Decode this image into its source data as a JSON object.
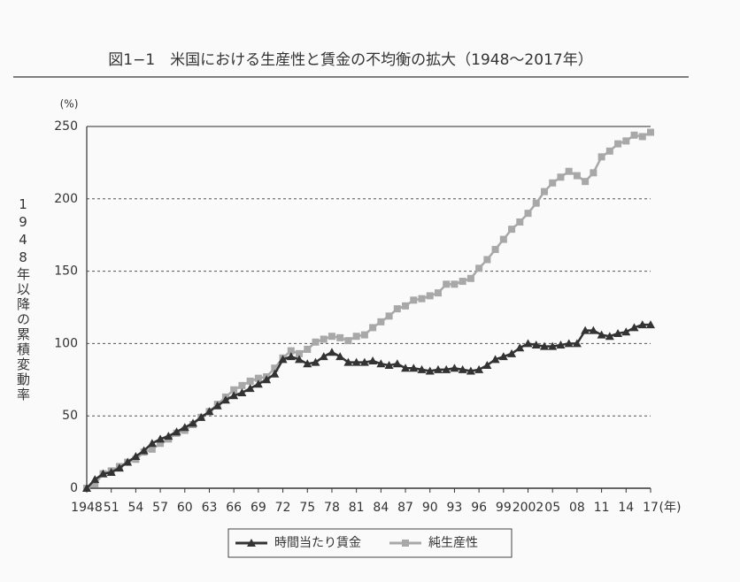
{
  "chart_data": {
    "type": "line",
    "title": "図1−1　米国における生産性と賃金の不均衡の拡大（1948〜2017年）",
    "y_unit": "(%)",
    "y_label": "1948年以降の累積変動率",
    "x_unit": "(年)",
    "x": [
      1948,
      1949,
      1950,
      1951,
      1952,
      1953,
      1954,
      1955,
      1956,
      1957,
      1958,
      1959,
      1960,
      1961,
      1962,
      1963,
      1964,
      1965,
      1966,
      1967,
      1968,
      1969,
      1970,
      1971,
      1972,
      1973,
      1974,
      1975,
      1976,
      1977,
      1978,
      1979,
      1980,
      1981,
      1982,
      1983,
      1984,
      1985,
      1986,
      1987,
      1988,
      1989,
      1990,
      1991,
      1992,
      1993,
      1994,
      1995,
      1996,
      1997,
      1998,
      1999,
      2000,
      2001,
      2002,
      2003,
      2004,
      2005,
      2006,
      2007,
      2008,
      2009,
      2010,
      2011,
      2012,
      2013,
      2014,
      2015,
      2016,
      2017
    ],
    "series": [
      {
        "name": "時間当たり賃金",
        "color": "#333333",
        "marker": "triangle",
        "values": [
          0,
          6,
          10,
          11,
          14,
          18,
          22,
          26,
          31,
          34,
          36,
          39,
          42,
          45,
          49,
          53,
          57,
          61,
          64,
          66,
          69,
          72,
          75,
          79,
          89,
          91,
          89,
          86,
          87,
          91,
          94,
          91,
          87,
          87,
          87,
          88,
          86,
          85,
          86,
          83,
          83,
          82,
          81,
          82,
          82,
          83,
          82,
          81,
          82,
          85,
          89,
          91,
          93,
          97,
          100,
          99,
          98,
          98,
          99,
          100,
          100,
          109,
          109,
          106,
          105,
          107,
          108,
          111,
          113,
          113
        ]
      },
      {
        "name": "純生産性",
        "color": "#a8a8a8",
        "marker": "square",
        "values": [
          0,
          3,
          10,
          12,
          15,
          18,
          20,
          25,
          27,
          31,
          34,
          38,
          40,
          44,
          49,
          53,
          58,
          63,
          68,
          71,
          74,
          76,
          77,
          83,
          90,
          95,
          93,
          96,
          101,
          103,
          105,
          104,
          102,
          105,
          106,
          111,
          115,
          119,
          124,
          126,
          130,
          131,
          133,
          135,
          141,
          141,
          143,
          145,
          152,
          158,
          165,
          172,
          179,
          184,
          190,
          197,
          205,
          211,
          215,
          219,
          216,
          212,
          218,
          229,
          233,
          238,
          240,
          244,
          243,
          246
        ]
      }
    ],
    "xlim": [
      1948,
      2017
    ],
    "xticks": [
      1948,
      {
        "value": 1951,
        "label": "51"
      },
      {
        "value": 1954,
        "label": "54"
      },
      {
        "value": 1957,
        "label": "57"
      },
      {
        "value": 1960,
        "label": "60"
      },
      {
        "value": 1963,
        "label": "63"
      },
      {
        "value": 1966,
        "label": "66"
      },
      {
        "value": 1969,
        "label": "69"
      },
      {
        "value": 1972,
        "label": "72"
      },
      {
        "value": 1975,
        "label": "75"
      },
      {
        "value": 1978,
        "label": "78"
      },
      {
        "value": 1981,
        "label": "81"
      },
      {
        "value": 1984,
        "label": "84"
      },
      {
        "value": 1987,
        "label": "87"
      },
      {
        "value": 1990,
        "label": "90"
      },
      {
        "value": 1993,
        "label": "93"
      },
      {
        "value": 1996,
        "label": "96"
      },
      {
        "value": 1999,
        "label": "99"
      },
      2002,
      {
        "value": 2005,
        "label": "05"
      },
      {
        "value": 2008,
        "label": "08"
      },
      {
        "value": 2011,
        "label": "11"
      },
      {
        "value": 2014,
        "label": "14"
      },
      {
        "value": 2017,
        "label": "17"
      }
    ],
    "ylim": [
      0,
      250
    ],
    "yticks": [
      0,
      50,
      100,
      150,
      200,
      250
    ],
    "grid": true,
    "legend": "bottom"
  }
}
